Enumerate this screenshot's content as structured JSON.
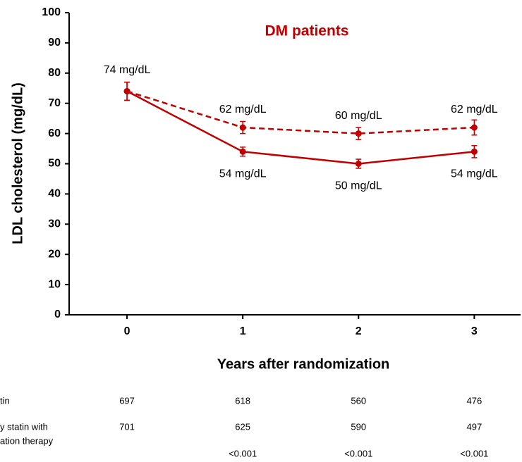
{
  "chart_data": {
    "type": "line",
    "title": "DM patients",
    "title_color": "#c00000",
    "x_label": "Years after randomization",
    "y_label": "LDL cholesterol (mg/dL)",
    "x": [
      0,
      1,
      2,
      3
    ],
    "xlim": [
      -0.5,
      3.4
    ],
    "xticks": [
      0,
      1,
      2,
      3
    ],
    "ylim": [
      0,
      100
    ],
    "yticks": [
      0,
      10,
      20,
      30,
      40,
      50,
      60,
      70,
      80,
      90,
      100
    ],
    "grid": false,
    "series": [
      {
        "color": "#c00000",
        "dash": true,
        "values": [
          74,
          62,
          60,
          62
        ],
        "errors": [
          3,
          2,
          2,
          2.5
        ],
        "value_labels": [
          "74 mg/dL",
          "62 mg/dL",
          "60 mg/dL",
          "62 mg/dL"
        ]
      },
      {
        "color": "#c00000",
        "dash": false,
        "values": [
          74,
          54,
          50,
          54
        ],
        "errors": [
          3,
          1.5,
          1.5,
          2
        ],
        "value_labels": [
          null,
          "54 mg/dL",
          "50 mg/dL",
          "54 mg/dL"
        ]
      }
    ]
  },
  "table": {
    "rows": [
      {
        "label": [
          "tin"
        ],
        "cells": [
          "697",
          "618",
          "560",
          "476"
        ]
      },
      {
        "label": [
          "y statin with",
          "ation therapy"
        ],
        "cells": [
          "701",
          "625",
          "590",
          "497"
        ]
      },
      {
        "label": [],
        "cells": [
          null,
          "<0.001",
          "<0.001",
          "<0.001"
        ]
      }
    ]
  }
}
